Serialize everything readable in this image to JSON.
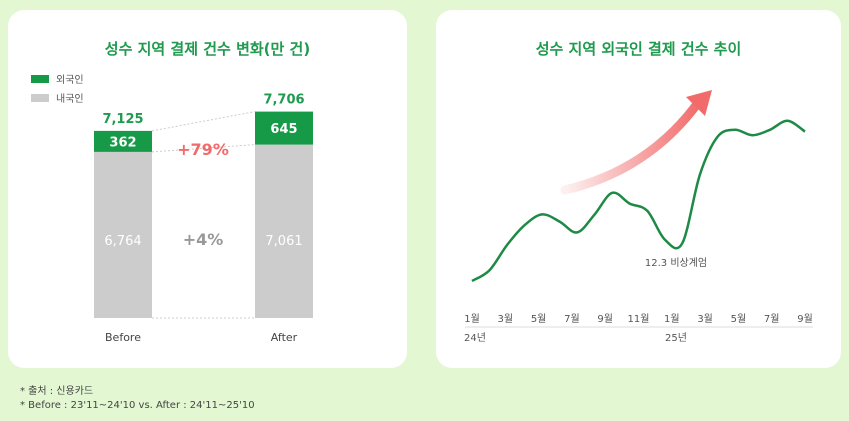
{
  "colors": {
    "foreign": "#169a47",
    "domestic": "#cccccc",
    "title": "#1f9a4e",
    "highlight": "#f26b6b",
    "line": "#1e8a45"
  },
  "chart_data": [
    {
      "type": "bar",
      "stacked": true,
      "title": "성수 지역 결제 건수 변화(만 건)",
      "categories": [
        "Before",
        "After"
      ],
      "series": [
        {
          "name": "외국인",
          "values": [
            362,
            645
          ]
        },
        {
          "name": "내국인",
          "values": [
            6764,
            7061
          ]
        }
      ],
      "totals": [
        "7,125",
        "7,706"
      ],
      "foreign_labels": [
        "362",
        "645"
      ],
      "domestic_labels": [
        "6,764",
        "7,061"
      ],
      "annotations": {
        "foreign_change": "+79%",
        "domestic_change": "+4%"
      },
      "legend": "top-left"
    },
    {
      "type": "line",
      "title": "성수 지역 외국인 결제 건수 추이",
      "x_ticks": [
        "1월",
        "3월",
        "5월",
        "7월",
        "9월",
        "11월",
        "1월",
        "3월",
        "5월",
        "7월",
        "9월"
      ],
      "year_labels": [
        "24년",
        "25년"
      ],
      "values": [
        5,
        11,
        25,
        36,
        42,
        38,
        32,
        42,
        54,
        48,
        44,
        28,
        26,
        64,
        85,
        89,
        86,
        89,
        94,
        88
      ],
      "annotation": "12.3 비상계엄",
      "y_axis": "hidden"
    }
  ],
  "notes": [
    "* 출처 : 신용카드",
    "* Before : 23'11~24'10 vs. After : 24'11~25'10"
  ]
}
